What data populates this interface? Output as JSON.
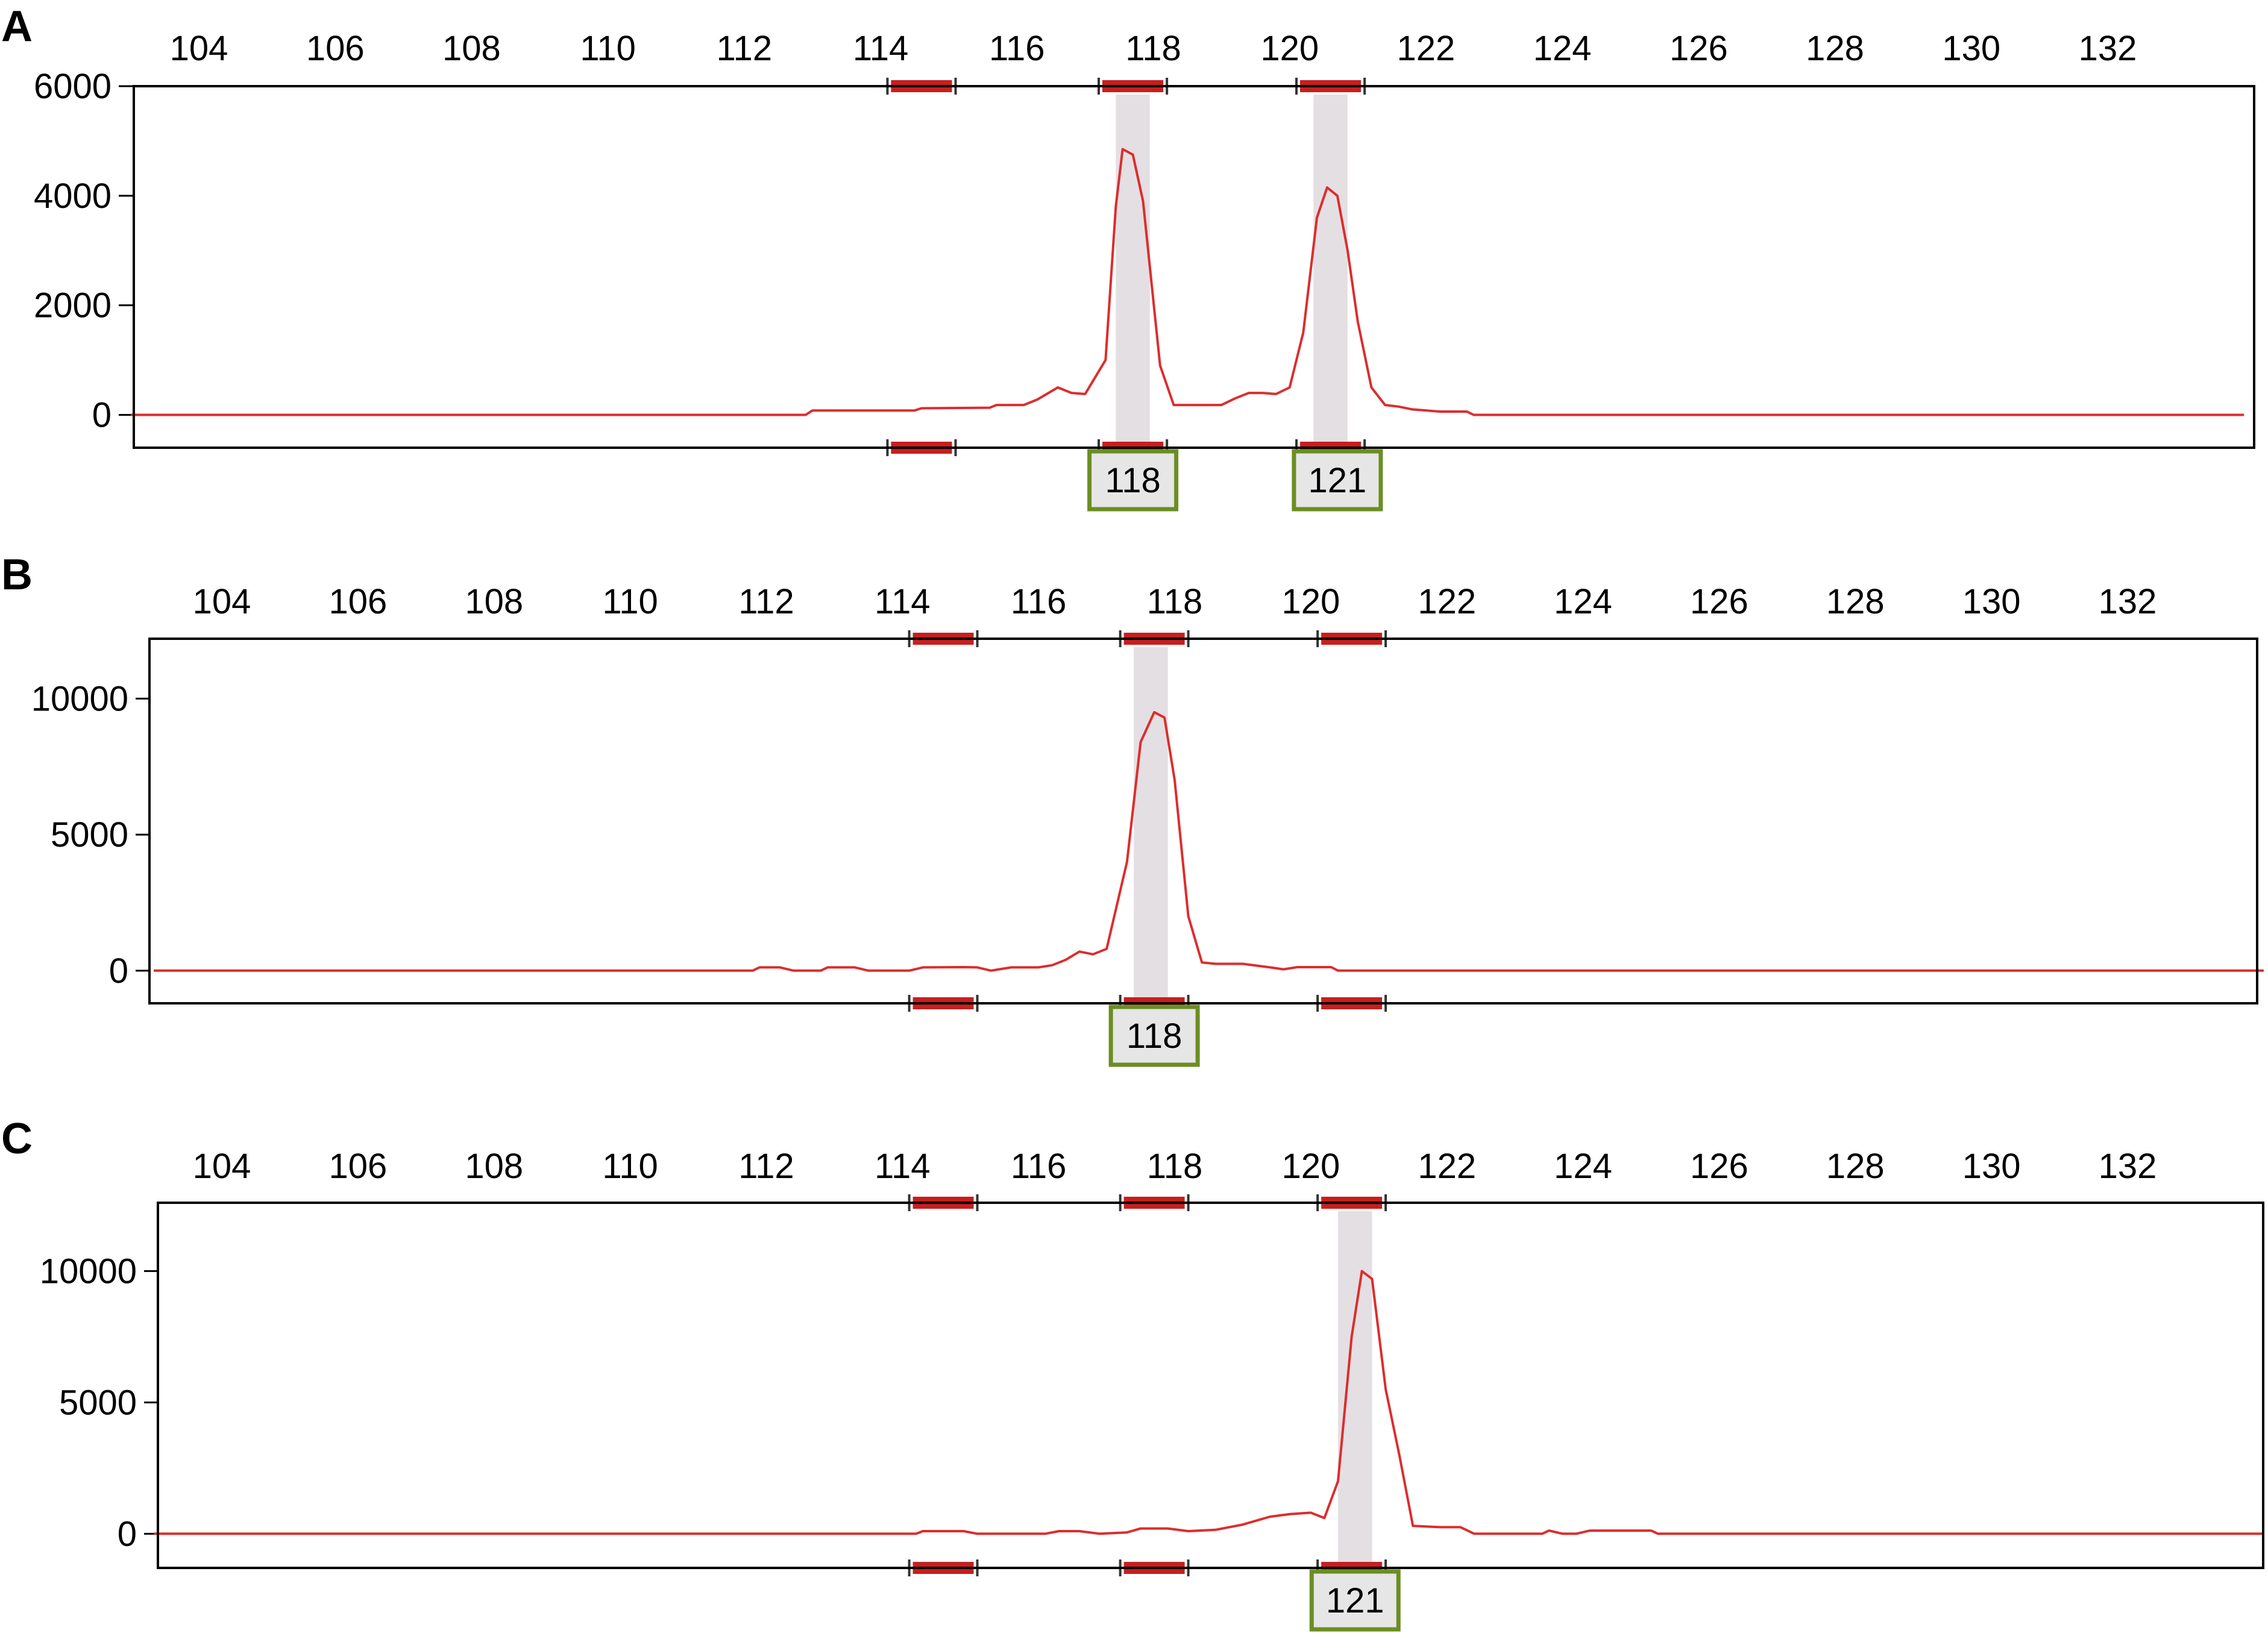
{
  "colors": {
    "trace": "#dc2d2d",
    "bin_marker": "#c81e1e",
    "bin_highlight": "#e4dfe3",
    "allele_box_border": "#6b8e23",
    "allele_box_fill": "#e6e6e6"
  },
  "chart_data": [
    {
      "type": "line",
      "panel": "A",
      "x_ticks": [
        "104",
        "106",
        "108",
        "110",
        "112",
        "114",
        "116",
        "118",
        "120",
        "122",
        "124",
        "126",
        "128",
        "130",
        "132"
      ],
      "y_ticks": [
        "0",
        "2000",
        "4000",
        "6000"
      ],
      "xlim": [
        103,
        134.0
      ],
      "ylim": [
        -600,
        6000
      ],
      "bins": [
        {
          "start": 114.1,
          "end": 115.1
        },
        {
          "start": 117.2,
          "end": 118.2
        },
        {
          "start": 120.1,
          "end": 121.1
        }
      ],
      "highlighted_bins": [
        {
          "start": 117.45,
          "end": 117.95
        },
        {
          "start": 120.35,
          "end": 120.85
        }
      ],
      "allele_calls": [
        {
          "label": "118",
          "x": 117.7
        },
        {
          "label": "121",
          "x": 120.7
        }
      ],
      "series": [
        {
          "x": [
            103,
            112.9,
            113.0,
            114.5,
            114.6,
            115.6,
            115.7,
            116.1,
            116.3,
            116.6,
            116.8,
            117.0,
            117.3,
            117.45,
            117.55,
            117.7,
            117.85,
            117.95,
            118.1,
            118.3,
            118.4,
            118.6,
            119.0,
            119.2,
            119.4,
            119.6,
            119.8,
            120.0,
            120.2,
            120.4,
            120.55,
            120.7,
            120.85,
            121.0,
            121.2,
            121.4,
            121.6,
            121.8,
            122.2,
            122.6,
            122.7,
            134.0
          ],
          "y": [
            0,
            0,
            80,
            80,
            120,
            130,
            180,
            180,
            280,
            500,
            400,
            380,
            1000,
            3800,
            4850,
            4750,
            3900,
            2700,
            900,
            180,
            180,
            180,
            180,
            300,
            400,
            400,
            380,
            500,
            1500,
            3600,
            4150,
            4000,
            3000,
            1700,
            500,
            180,
            150,
            100,
            60,
            60,
            0,
            0
          ]
        }
      ]
    },
    {
      "type": "line",
      "panel": "B",
      "x_ticks": [
        "104",
        "106",
        "108",
        "110",
        "112",
        "114",
        "116",
        "118",
        "120",
        "122",
        "124",
        "126",
        "128",
        "130",
        "132"
      ],
      "y_ticks": [
        "0",
        "5000",
        "10000"
      ],
      "xlim": [
        103,
        134.0
      ],
      "ylim": [
        -1200,
        12200
      ],
      "bins": [
        {
          "start": 114.1,
          "end": 115.1
        },
        {
          "start": 117.2,
          "end": 118.2
        },
        {
          "start": 120.1,
          "end": 121.1
        }
      ],
      "highlighted_bins": [
        {
          "start": 117.4,
          "end": 117.9
        }
      ],
      "allele_calls": [
        {
          "label": "118",
          "x": 117.7
        }
      ],
      "series": [
        {
          "x": [
            103,
            111.8,
            111.9,
            112.2,
            112.4,
            112.8,
            112.9,
            113.3,
            113.5,
            114.1,
            114.3,
            114.9,
            115.1,
            115.3,
            115.6,
            116.0,
            116.2,
            116.4,
            116.6,
            116.8,
            117.0,
            117.3,
            117.5,
            117.7,
            117.85,
            118.0,
            118.2,
            118.4,
            118.6,
            119.0,
            119.4,
            119.6,
            119.8,
            120.0,
            120.3,
            120.4,
            134.0
          ],
          "y": [
            0,
            0,
            120,
            120,
            0,
            0,
            120,
            120,
            0,
            0,
            120,
            130,
            120,
            0,
            120,
            120,
            200,
            400,
            700,
            600,
            800,
            4000,
            8400,
            9500,
            9300,
            7000,
            2000,
            300,
            250,
            250,
            120,
            50,
            130,
            130,
            130,
            0,
            0
          ]
        }
      ]
    },
    {
      "type": "line",
      "panel": "C",
      "x_ticks": [
        "104",
        "106",
        "108",
        "110",
        "112",
        "114",
        "116",
        "118",
        "120",
        "122",
        "124",
        "126",
        "128",
        "130",
        "132"
      ],
      "y_ticks": [
        "0",
        "5000",
        "10000"
      ],
      "xlim": [
        103,
        134.0
      ],
      "ylim": [
        -1300,
        12600
      ],
      "bins": [
        {
          "start": 114.1,
          "end": 115.1
        },
        {
          "start": 117.2,
          "end": 118.2
        },
        {
          "start": 120.1,
          "end": 121.1
        }
      ],
      "highlighted_bins": [
        {
          "start": 120.4,
          "end": 120.9
        }
      ],
      "allele_calls": [
        {
          "label": "121",
          "x": 120.65
        }
      ],
      "series": [
        {
          "x": [
            103,
            114.2,
            114.3,
            114.9,
            115.1,
            116.1,
            116.3,
            116.6,
            116.9,
            117.3,
            117.5,
            117.9,
            118.2,
            118.6,
            119.0,
            119.4,
            119.7,
            120.0,
            120.2,
            120.4,
            120.6,
            120.75,
            120.9,
            121.1,
            121.3,
            121.5,
            121.9,
            122.2,
            122.4,
            123.4,
            123.5,
            123.7,
            123.9,
            124.1,
            124.2,
            125.0,
            125.1,
            134.0
          ],
          "y": [
            0,
            0,
            100,
            100,
            0,
            0,
            100,
            100,
            0,
            50,
            200,
            200,
            100,
            150,
            350,
            650,
            750,
            800,
            600,
            2000,
            7500,
            10000,
            9700,
            5500,
            3000,
            300,
            250,
            250,
            0,
            0,
            120,
            0,
            0,
            120,
            120,
            120,
            0,
            0
          ]
        }
      ]
    }
  ]
}
